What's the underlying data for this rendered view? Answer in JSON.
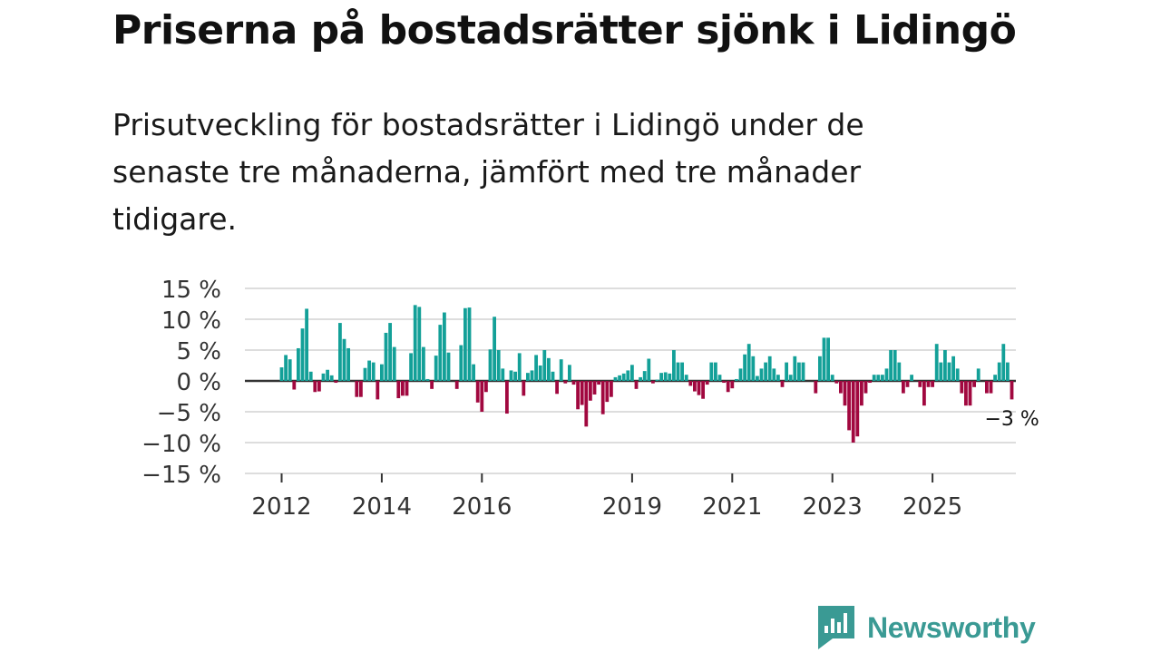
{
  "title": "Priserna på bostadsrätter sjönk i Lidingö",
  "subtitle": "Prisutveckling för bostadsrätter i Lidingö under de senaste tre månaderna, jämfört med tre månader tidigare.",
  "brand": {
    "name": "Newsworthy",
    "icon": "newsworthy-logo-icon",
    "color": "#3a9a94"
  },
  "colors": {
    "positive": "#13a098",
    "negative": "#a1083f",
    "grid": "#dddddd",
    "zero": "#333333"
  },
  "chart_data": {
    "type": "bar",
    "title": "",
    "xlabel": "",
    "ylabel": "",
    "ylim": [
      -15,
      15
    ],
    "y_ticks": [
      15,
      10,
      5,
      0,
      -5,
      -10,
      -15
    ],
    "y_tick_labels": [
      "15 %",
      "10 %",
      "5 %",
      "0 %",
      "−5 %",
      "−10 %",
      "−15 %"
    ],
    "x_ticks": [
      {
        "label": "2012",
        "year": 2012
      },
      {
        "label": "2014",
        "year": 2014
      },
      {
        "label": "2016",
        "year": 2016
      },
      {
        "label": "2019",
        "year": 2019
      },
      {
        "label": "2021",
        "year": 2021
      },
      {
        "label": "2023",
        "year": 2023
      },
      {
        "label": "2025",
        "year": 2025
      }
    ],
    "start": {
      "year": 2012,
      "month": 1
    },
    "values": [
      2.2,
      4.2,
      3.5,
      -1.4,
      5.3,
      8.5,
      11.7,
      1.5,
      -1.8,
      -1.7,
      1.2,
      1.8,
      0.9,
      -0.3,
      9.4,
      6.8,
      5.3,
      0,
      -2.6,
      -2.6,
      2.1,
      3.3,
      3.0,
      -3.0,
      2.7,
      7.8,
      9.4,
      5.5,
      -2.8,
      -2.4,
      -2.4,
      4.5,
      12.3,
      12.0,
      5.5,
      0.3,
      -1.3,
      4.1,
      9.1,
      11.1,
      4.6,
      0,
      -1.3,
      5.8,
      11.8,
      11.9,
      2.7,
      -3.5,
      -5.0,
      -1.8,
      5.1,
      10.4,
      5.0,
      2.0,
      -5.3,
      1.7,
      1.5,
      4.5,
      -2.4,
      1.3,
      1.7,
      4.2,
      2.5,
      5.0,
      3.7,
      1.5,
      -2.1,
      3.5,
      -0.4,
      2.6,
      -0.6,
      -4.6,
      -3.9,
      -7.4,
      -3.2,
      -2.2,
      -0.6,
      -5.4,
      -3.4,
      -2.6,
      0.6,
      0.9,
      1.2,
      1.7,
      2.6,
      -1.3,
      0.6,
      1.6,
      3.6,
      -0.4,
      0.2,
      1.3,
      1.4,
      1.2,
      5.0,
      3.0,
      3.0,
      1.0,
      -0.8,
      -1.7,
      -2.3,
      -2.9,
      -0.6,
      3.0,
      3.0,
      1.0,
      -0.3,
      -1.8,
      -1.2,
      0.3,
      2.0,
      4.3,
      6.0,
      4.0,
      0.8,
      2.0,
      3.0,
      4.0,
      2.0,
      1.0,
      -1.0,
      3.0,
      1.0,
      4.0,
      3.0,
      3.0,
      0,
      0,
      -2.0,
      4.0,
      7.0,
      7.0,
      1.0,
      -0.4,
      -2.0,
      -4.0,
      -8.0,
      -10.0,
      -9.0,
      -4.0,
      -2.0,
      -0.3,
      1.0,
      1.0,
      1.0,
      2.0,
      5.0,
      5.0,
      3.0,
      -2.0,
      -1.0,
      1.0,
      0,
      -1.0,
      -4.0,
      -1.0,
      -1.0,
      6.0,
      3.0,
      5.0,
      3.0,
      4.0,
      2.0,
      -2.0,
      -4.0,
      -4.0,
      -1.0,
      2.0,
      0,
      -2.0,
      -2.0,
      1.0,
      3.0,
      6.0,
      3.0,
      -3.0
    ],
    "annotations": [
      {
        "text": "−3 %",
        "target": "last"
      }
    ]
  }
}
